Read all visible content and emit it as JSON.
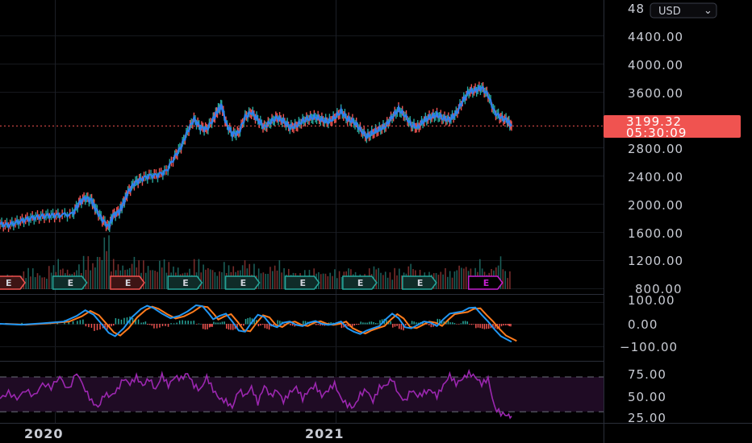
{
  "currency": "USD",
  "colors": {
    "background": "#000000",
    "grid": "#16181d",
    "separator": "#2a2e39",
    "price_line": "#2f80ed",
    "candle_up": "#26a69a",
    "candle_down": "#ef5350",
    "last_price_bg": "#f05350",
    "macd_line": "#2196f3",
    "signal_line": "#ff7b1c",
    "rsi_line": "#9c27b0",
    "rsi_band": "#1f0b24",
    "earnings_past": "#26a69a",
    "earnings_future": "#c41fcf"
  },
  "last_price": {
    "value": "3199.32",
    "countdown": "05:30:09"
  },
  "earnings_markers": [
    {
      "label": "E",
      "status": "past",
      "direction": "down",
      "t": 0.0
    },
    {
      "label": "E",
      "status": "past",
      "direction": "up",
      "t": 0.145
    },
    {
      "label": "E",
      "status": "past",
      "direction": "down",
      "t": 0.28
    },
    {
      "label": "E",
      "status": "past",
      "direction": "up",
      "t": 0.415
    },
    {
      "label": "E",
      "status": "past",
      "direction": "up",
      "t": 0.55
    },
    {
      "label": "E",
      "status": "past",
      "direction": "up",
      "t": 0.69
    },
    {
      "label": "E",
      "status": "past",
      "direction": "up",
      "t": 0.825
    },
    {
      "label": "E",
      "status": "past",
      "direction": "up",
      "t": 0.965
    },
    {
      "label": "E",
      "status": "future",
      "direction": "up",
      "t": 1.12
    }
  ],
  "chart_data": [
    {
      "type": "line",
      "panel": "price",
      "y_tick_labels": [
        "4400.00",
        "4000.00",
        "3600.00",
        "2800.00",
        "2400.00",
        "2000.00",
        "1600.00",
        "1200.00",
        "800.00"
      ],
      "y_partial_top_label": "48",
      "ylim": [
        800,
        4900
      ],
      "x_date_labels": [
        "2020",
        "2021"
      ],
      "points": [
        [
          0,
          1760
        ],
        [
          0.02,
          1750
        ],
        [
          0.04,
          1790
        ],
        [
          0.06,
          1830
        ],
        [
          0.08,
          1860
        ],
        [
          0.1,
          1880
        ],
        [
          0.12,
          1890
        ],
        [
          0.14,
          1895
        ],
        [
          0.17,
          1910
        ],
        [
          0.185,
          2070
        ],
        [
          0.2,
          2150
        ],
        [
          0.215,
          2110
        ],
        [
          0.225,
          1980
        ],
        [
          0.24,
          1830
        ],
        [
          0.255,
          1720
        ],
        [
          0.265,
          1890
        ],
        [
          0.28,
          1950
        ],
        [
          0.29,
          2080
        ],
        [
          0.3,
          2230
        ],
        [
          0.315,
          2360
        ],
        [
          0.33,
          2420
        ],
        [
          0.35,
          2470
        ],
        [
          0.37,
          2480
        ],
        [
          0.39,
          2540
        ],
        [
          0.41,
          2750
        ],
        [
          0.425,
          2900
        ],
        [
          0.44,
          3120
        ],
        [
          0.455,
          3300
        ],
        [
          0.47,
          3180
        ],
        [
          0.485,
          3150
        ],
        [
          0.5,
          3300
        ],
        [
          0.51,
          3420
        ],
        [
          0.52,
          3500
        ],
        [
          0.53,
          3240
        ],
        [
          0.545,
          3080
        ],
        [
          0.56,
          3100
        ],
        [
          0.575,
          3330
        ],
        [
          0.59,
          3400
        ],
        [
          0.605,
          3290
        ],
        [
          0.62,
          3180
        ],
        [
          0.635,
          3260
        ],
        [
          0.65,
          3320
        ],
        [
          0.665,
          3270
        ],
        [
          0.68,
          3180
        ],
        [
          0.695,
          3200
        ],
        [
          0.71,
          3270
        ],
        [
          0.725,
          3310
        ],
        [
          0.74,
          3330
        ],
        [
          0.755,
          3290
        ],
        [
          0.77,
          3260
        ],
        [
          0.785,
          3320
        ],
        [
          0.8,
          3410
        ],
        [
          0.815,
          3300
        ],
        [
          0.83,
          3260
        ],
        [
          0.845,
          3150
        ],
        [
          0.86,
          3040
        ],
        [
          0.875,
          3100
        ],
        [
          0.89,
          3150
        ],
        [
          0.905,
          3200
        ],
        [
          0.92,
          3330
        ],
        [
          0.935,
          3440
        ],
        [
          0.95,
          3350
        ],
        [
          0.965,
          3210
        ],
        [
          0.98,
          3180
        ],
        [
          0.995,
          3280
        ],
        [
          1.01,
          3330
        ],
        [
          1.025,
          3360
        ],
        [
          1.04,
          3310
        ],
        [
          1.055,
          3290
        ],
        [
          1.07,
          3380
        ],
        [
          1.085,
          3560
        ],
        [
          1.1,
          3700
        ],
        [
          1.115,
          3720
        ],
        [
          1.13,
          3760
        ],
        [
          1.145,
          3650
        ],
        [
          1.16,
          3400
        ],
        [
          1.175,
          3320
        ],
        [
          1.19,
          3280
        ],
        [
          1.2,
          3199
        ]
      ]
    },
    {
      "type": "bar",
      "panel": "volume",
      "note_values": "relative volume 0-1",
      "values": [
        0.15,
        0.25,
        0.2,
        0.3,
        0.35,
        0.28,
        0.22,
        0.4,
        0.5,
        0.35,
        0.3,
        0.42,
        0.55,
        0.45,
        0.6,
        0.9,
        0.5,
        0.42,
        0.38,
        0.55,
        0.48,
        0.4,
        0.35,
        0.5,
        0.45,
        0.38,
        0.3,
        0.35,
        0.5,
        0.42,
        0.38,
        0.3,
        0.45,
        0.4,
        0.35,
        0.5,
        0.42,
        0.35,
        0.3,
        0.4,
        0.48,
        0.35,
        0.3,
        0.28,
        0.32,
        0.35,
        0.3,
        0.28,
        0.33,
        0.3,
        0.38,
        0.3,
        0.25,
        0.35,
        0.4,
        0.3,
        0.28,
        0.35,
        0.3,
        0.45,
        0.32,
        0.28,
        0.3,
        0.3,
        0.35,
        0.3,
        0.42,
        0.4,
        0.35,
        0.5,
        0.3,
        0.38,
        0.55,
        0.3
      ]
    },
    {
      "type": "line",
      "panel": "macd",
      "y_tick_labels": [
        "100.00",
        "0.00",
        "−100.00"
      ],
      "ylim": [
        -120,
        120
      ],
      "macd": [
        [
          0,
          0
        ],
        [
          0.05,
          -4
        ],
        [
          0.1,
          2
        ],
        [
          0.15,
          10
        ],
        [
          0.18,
          35
        ],
        [
          0.2,
          60
        ],
        [
          0.22,
          40
        ],
        [
          0.24,
          -5
        ],
        [
          0.255,
          -40
        ],
        [
          0.27,
          -55
        ],
        [
          0.29,
          -20
        ],
        [
          0.31,
          30
        ],
        [
          0.33,
          65
        ],
        [
          0.345,
          80
        ],
        [
          0.36,
          70
        ],
        [
          0.38,
          45
        ],
        [
          0.4,
          25
        ],
        [
          0.42,
          35
        ],
        [
          0.44,
          55
        ],
        [
          0.46,
          82
        ],
        [
          0.475,
          78
        ],
        [
          0.49,
          45
        ],
        [
          0.5,
          20
        ],
        [
          0.515,
          35
        ],
        [
          0.53,
          45
        ],
        [
          0.545,
          10
        ],
        [
          0.56,
          -30
        ],
        [
          0.575,
          -35
        ],
        [
          0.59,
          5
        ],
        [
          0.605,
          40
        ],
        [
          0.62,
          30
        ],
        [
          0.635,
          -5
        ],
        [
          0.65,
          -15
        ],
        [
          0.665,
          5
        ],
        [
          0.68,
          10
        ],
        [
          0.695,
          -5
        ],
        [
          0.71,
          -10
        ],
        [
          0.725,
          5
        ],
        [
          0.74,
          12
        ],
        [
          0.755,
          0
        ],
        [
          0.77,
          -5
        ],
        [
          0.785,
          0
        ],
        [
          0.8,
          10
        ],
        [
          0.815,
          -20
        ],
        [
          0.83,
          -35
        ],
        [
          0.845,
          -45
        ],
        [
          0.86,
          -30
        ],
        [
          0.875,
          -20
        ],
        [
          0.89,
          -10
        ],
        [
          0.905,
          20
        ],
        [
          0.92,
          45
        ],
        [
          0.935,
          25
        ],
        [
          0.95,
          -15
        ],
        [
          0.965,
          -20
        ],
        [
          0.98,
          -5
        ],
        [
          0.995,
          10
        ],
        [
          1.01,
          5
        ],
        [
          1.025,
          -10
        ],
        [
          1.04,
          20
        ],
        [
          1.055,
          45
        ],
        [
          1.07,
          50
        ],
        [
          1.085,
          55
        ],
        [
          1.1,
          70
        ],
        [
          1.115,
          72
        ],
        [
          1.13,
          40
        ],
        [
          1.145,
          10
        ],
        [
          1.16,
          -25
        ],
        [
          1.175,
          -55
        ],
        [
          1.19,
          -70
        ],
        [
          1.2,
          -80
        ]
      ],
      "signal_offset_t": 0.012
    },
    {
      "type": "line",
      "panel": "rsi",
      "y_tick_labels": [
        "75.00",
        "50.00",
        "25.00"
      ],
      "ylim": [
        20,
        82
      ],
      "band": [
        30,
        70
      ],
      "values": [
        [
          0,
          45
        ],
        [
          0.02,
          52
        ],
        [
          0.04,
          45
        ],
        [
          0.06,
          55
        ],
        [
          0.08,
          48
        ],
        [
          0.1,
          62
        ],
        [
          0.12,
          58
        ],
        [
          0.14,
          70
        ],
        [
          0.16,
          55
        ],
        [
          0.18,
          75
        ],
        [
          0.2,
          55
        ],
        [
          0.215,
          42
        ],
        [
          0.23,
          35
        ],
        [
          0.245,
          50
        ],
        [
          0.26,
          48
        ],
        [
          0.275,
          55
        ],
        [
          0.29,
          68
        ],
        [
          0.305,
          62
        ],
        [
          0.32,
          70
        ],
        [
          0.335,
          60
        ],
        [
          0.35,
          68
        ],
        [
          0.365,
          55
        ],
        [
          0.38,
          72
        ],
        [
          0.395,
          60
        ],
        [
          0.41,
          70
        ],
        [
          0.425,
          68
        ],
        [
          0.44,
          74
        ],
        [
          0.455,
          60
        ],
        [
          0.47,
          55
        ],
        [
          0.485,
          70
        ],
        [
          0.5,
          55
        ],
        [
          0.515,
          45
        ],
        [
          0.53,
          42
        ],
        [
          0.545,
          35
        ],
        [
          0.56,
          55
        ],
        [
          0.575,
          48
        ],
        [
          0.59,
          58
        ],
        [
          0.605,
          40
        ],
        [
          0.62,
          60
        ],
        [
          0.635,
          48
        ],
        [
          0.65,
          55
        ],
        [
          0.665,
          42
        ],
        [
          0.68,
          52
        ],
        [
          0.695,
          58
        ],
        [
          0.71,
          45
        ],
        [
          0.725,
          55
        ],
        [
          0.74,
          60
        ],
        [
          0.755,
          48
        ],
        [
          0.77,
          55
        ],
        [
          0.785,
          62
        ],
        [
          0.8,
          45
        ],
        [
          0.815,
          38
        ],
        [
          0.83,
          35
        ],
        [
          0.845,
          50
        ],
        [
          0.86,
          55
        ],
        [
          0.875,
          42
        ],
        [
          0.89,
          58
        ],
        [
          0.905,
          60
        ],
        [
          0.92,
          68
        ],
        [
          0.935,
          50
        ],
        [
          0.95,
          42
        ],
        [
          0.965,
          55
        ],
        [
          0.98,
          48
        ],
        [
          0.995,
          52
        ],
        [
          1.01,
          55
        ],
        [
          1.025,
          48
        ],
        [
          1.04,
          60
        ],
        [
          1.055,
          72
        ],
        [
          1.07,
          62
        ],
        [
          1.085,
          68
        ],
        [
          1.1,
          74
        ],
        [
          1.115,
          70
        ],
        [
          1.13,
          62
        ],
        [
          1.145,
          68
        ],
        [
          1.16,
          35
        ],
        [
          1.175,
          28
        ],
        [
          1.19,
          26
        ],
        [
          1.2,
          25
        ]
      ]
    }
  ]
}
